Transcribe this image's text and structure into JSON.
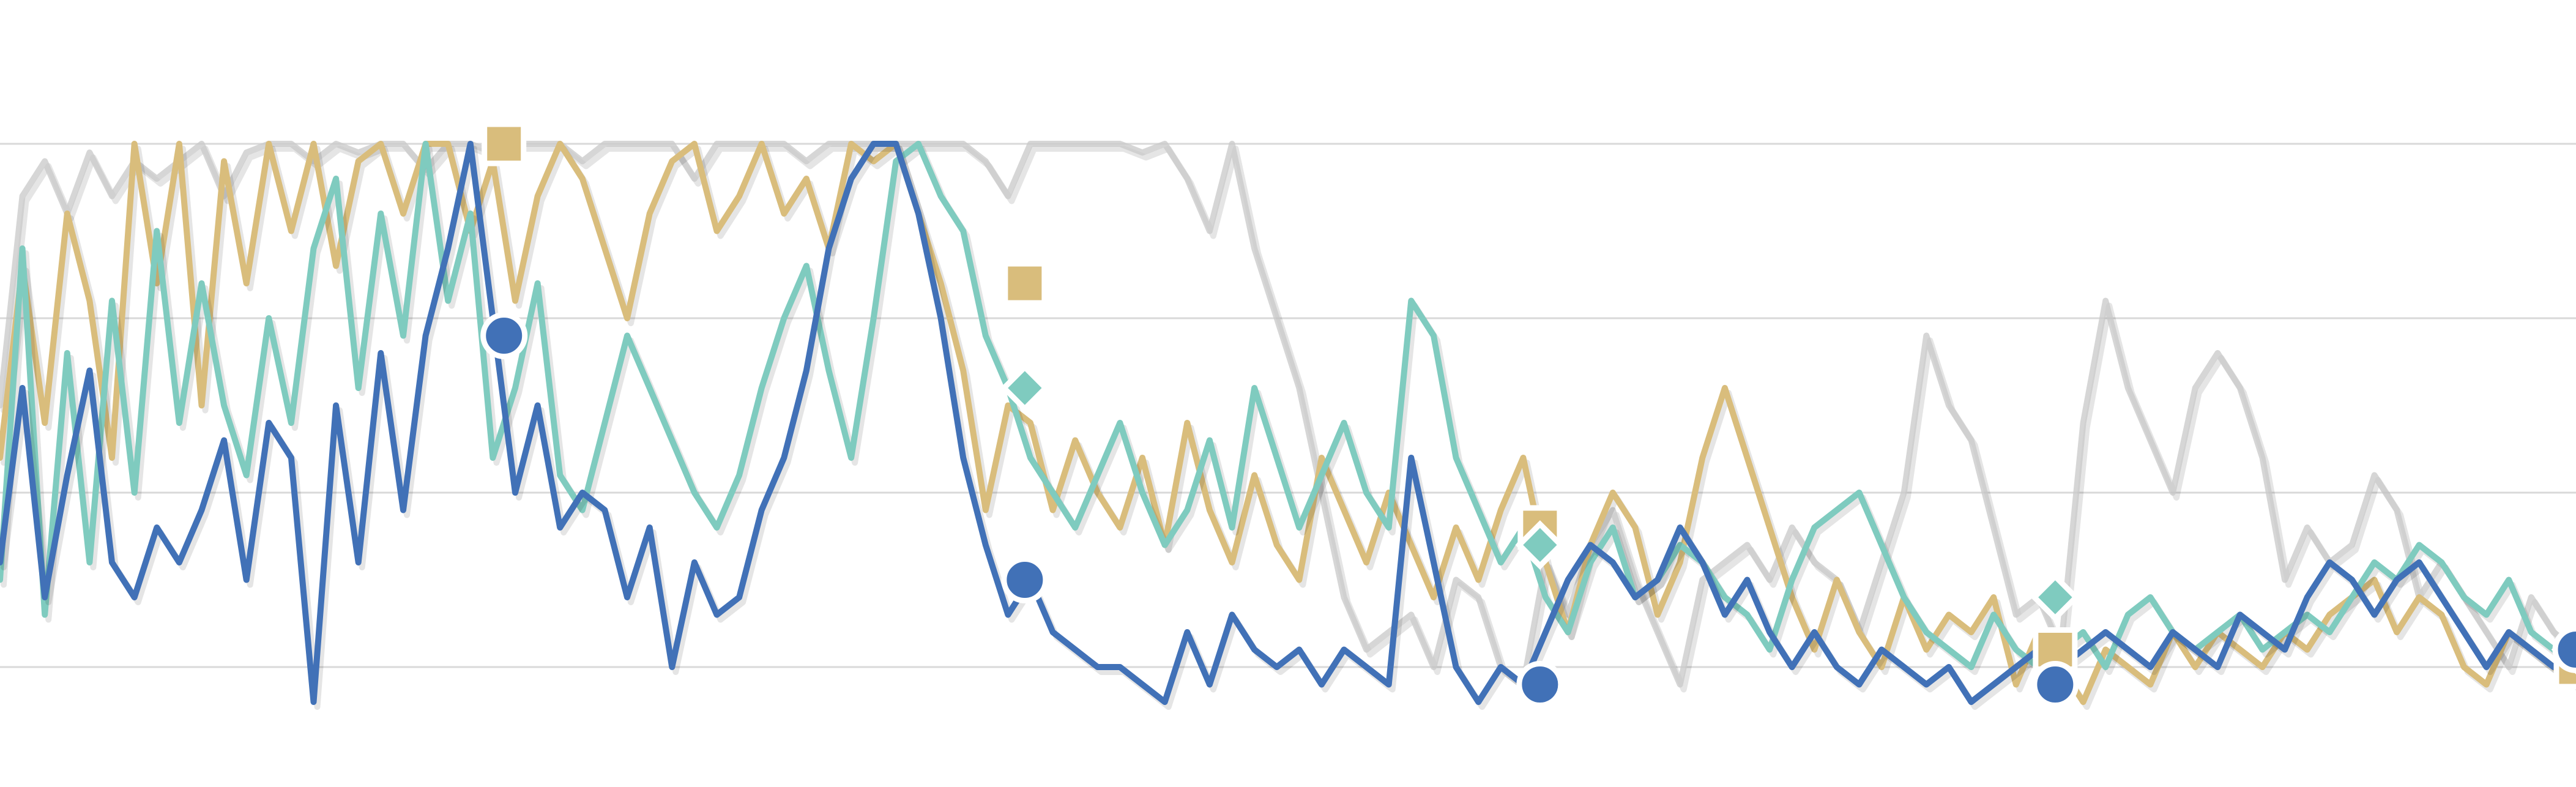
{
  "chart_data": {
    "type": "line",
    "title": "",
    "xlabel": "",
    "ylabel": "",
    "grid": true,
    "legend": "none",
    "ylim": [
      0,
      4
    ],
    "xlim": [
      0,
      460
    ],
    "gridlines": [
      1,
      2,
      3,
      4
    ],
    "series": [
      {
        "color": "#c8c8c8",
        "opacity": 0.75,
        "marker": "none",
        "x": [
          0,
          4,
          8,
          12,
          16,
          20,
          24,
          28,
          32,
          36,
          40,
          44,
          48,
          52,
          56,
          60,
          64,
          68,
          72,
          76,
          80,
          84,
          88,
          92,
          96,
          100,
          104,
          108,
          112,
          116,
          120,
          124,
          128,
          132,
          136,
          140,
          144,
          148,
          152,
          156,
          160,
          164,
          168,
          172,
          176,
          180,
          184,
          188,
          192,
          196,
          200,
          204,
          208,
          212,
          216,
          220,
          224,
          228,
          232,
          236,
          240,
          244,
          248,
          252,
          256,
          260,
          264,
          268,
          272,
          276,
          280,
          284,
          288,
          292,
          296,
          300,
          304,
          308,
          312,
          316,
          320,
          324,
          328,
          332,
          336,
          340,
          344,
          348,
          352,
          356,
          360,
          364,
          368,
          372,
          376,
          380,
          384,
          388,
          392,
          396,
          400,
          404,
          408,
          412,
          416,
          420,
          424,
          428,
          432,
          436,
          440,
          444,
          448,
          452,
          456,
          460
        ],
        "values": [
          2.5,
          3.7,
          3.9,
          3.6,
          3.95,
          3.7,
          3.9,
          3.8,
          3.9,
          4,
          3.7,
          3.95,
          4,
          4,
          3.9,
          4,
          3.95,
          4,
          4,
          3.85,
          4,
          4,
          3.95,
          4,
          4,
          4,
          3.9,
          4,
          4,
          4,
          4,
          3.8,
          4,
          4,
          4,
          4,
          3.9,
          4,
          4,
          4,
          4,
          4,
          4,
          4,
          3.9,
          3.7,
          4,
          4,
          4,
          4,
          4,
          3.95,
          4,
          3.8,
          3.5,
          4,
          3.4,
          3.0,
          2.6,
          2.0,
          1.4,
          1.1,
          1.2,
          1.3,
          1.0,
          1.5,
          1.4,
          1.0,
          0.9,
          1.6,
          1.3,
          1.7,
          1.9,
          1.5,
          1.2,
          0.9,
          1.5,
          1.6,
          1.7,
          1.5,
          1.8,
          1.6,
          1.5,
          1.2,
          1.6,
          2.0,
          2.9,
          2.5,
          2.3,
          1.8,
          1.3,
          1.4,
          1.1,
          2.4,
          3.1,
          2.6,
          2.3,
          2.0,
          2.6,
          2.8,
          2.6,
          2.2,
          1.5,
          1.8,
          1.6,
          1.7,
          2.1,
          1.9,
          1.4,
          1.6,
          1.4,
          1.2,
          1.0,
          1.4,
          1.2,
          1.1
        ]
      },
      {
        "color": "#d9bd7c",
        "opacity": 1,
        "marker": "square",
        "x": [
          0,
          4,
          8,
          12,
          16,
          20,
          24,
          28,
          32,
          36,
          40,
          44,
          48,
          52,
          56,
          60,
          64,
          68,
          72,
          76,
          80,
          84,
          88,
          92,
          96,
          100,
          104,
          108,
          112,
          116,
          120,
          124,
          128,
          132,
          136,
          140,
          144,
          148,
          152,
          156,
          160,
          164,
          168,
          172,
          176,
          180,
          184,
          188,
          192,
          196,
          200,
          204,
          208,
          212,
          216,
          220,
          224,
          228,
          232,
          236,
          240,
          244,
          248,
          252,
          256,
          260,
          264,
          268,
          272,
          276,
          280,
          284,
          288,
          292,
          296,
          300,
          304,
          308,
          312,
          316,
          320,
          324,
          328,
          332,
          336,
          340,
          344,
          348,
          352,
          356,
          360,
          364,
          368,
          372,
          376,
          380,
          384,
          388,
          392,
          396,
          400,
          404,
          408,
          412,
          416,
          420,
          424,
          428,
          432,
          436,
          440,
          444,
          448,
          452,
          456,
          460
        ],
        "values": [
          2.2,
          3.3,
          2.4,
          3.6,
          3.1,
          2.2,
          4.0,
          3.2,
          4.0,
          2.5,
          3.9,
          3.2,
          4.0,
          3.5,
          4.0,
          3.3,
          3.9,
          4.0,
          3.6,
          4.0,
          4.0,
          3.5,
          3.9,
          3.1,
          3.7,
          4.0,
          3.8,
          3.4,
          3.0,
          3.6,
          3.9,
          4.0,
          3.5,
          3.7,
          4.0,
          3.6,
          3.8,
          3.4,
          4.0,
          3.9,
          4.0,
          3.6,
          3.2,
          2.7,
          1.9,
          2.5,
          2.4,
          1.9,
          2.3,
          2.0,
          1.8,
          2.2,
          1.7,
          2.4,
          1.9,
          1.6,
          2.1,
          1.7,
          1.5,
          2.2,
          1.9,
          1.6,
          2.0,
          1.7,
          1.4,
          1.8,
          1.5,
          1.9,
          2.2,
          1.6,
          1.2,
          1.7,
          2.0,
          1.8,
          1.3,
          1.6,
          2.2,
          2.6,
          2.2,
          1.8,
          1.4,
          1.1,
          1.5,
          1.2,
          1.0,
          1.4,
          1.1,
          1.3,
          1.2,
          1.4,
          0.9,
          1.2,
          1.0,
          0.8,
          1.1,
          1.0,
          0.9,
          1.2,
          1.0,
          1.2,
          1.1,
          1.0,
          1.2,
          1.1,
          1.3,
          1.4,
          1.5,
          1.2,
          1.4,
          1.3,
          1.0,
          0.9,
          1.2,
          1.1,
          1.0,
          0.9
        ],
        "marker_x": [
          90,
          183,
          275,
          367,
          460
        ],
        "marker_values": [
          4.0,
          3.2,
          1.8,
          1.1,
          1.0
        ]
      },
      {
        "color": "#7fcbbf",
        "opacity": 1,
        "marker": "diamond",
        "x": [
          0,
          4,
          8,
          12,
          16,
          20,
          24,
          28,
          32,
          36,
          40,
          44,
          48,
          52,
          56,
          60,
          64,
          68,
          72,
          76,
          80,
          84,
          88,
          92,
          96,
          100,
          104,
          108,
          112,
          116,
          120,
          124,
          128,
          132,
          136,
          140,
          144,
          148,
          152,
          156,
          160,
          164,
          168,
          172,
          176,
          180,
          184,
          188,
          192,
          196,
          200,
          204,
          208,
          212,
          216,
          220,
          224,
          228,
          232,
          236,
          240,
          244,
          248,
          252,
          256,
          260,
          264,
          268,
          272,
          276,
          280,
          284,
          288,
          292,
          296,
          300,
          304,
          308,
          312,
          316,
          320,
          324,
          328,
          332,
          336,
          340,
          344,
          348,
          352,
          356,
          360,
          364,
          368,
          372,
          376,
          380,
          384,
          388,
          392,
          396,
          400,
          404,
          408,
          412,
          416,
          420,
          424,
          428,
          432,
          436,
          440,
          444,
          448,
          452,
          456,
          460
        ],
        "values": [
          1.5,
          3.4,
          1.3,
          2.8,
          1.6,
          3.1,
          2.0,
          3.5,
          2.4,
          3.2,
          2.5,
          2.1,
          3.0,
          2.4,
          3.4,
          3.8,
          2.6,
          3.6,
          2.9,
          4.0,
          3.1,
          3.6,
          2.2,
          2.6,
          3.2,
          2.1,
          1.9,
          2.4,
          2.9,
          2.6,
          2.3,
          2.0,
          1.8,
          2.1,
          2.6,
          3.0,
          3.3,
          2.7,
          2.2,
          3.0,
          3.9,
          4.0,
          3.7,
          3.5,
          2.9,
          2.6,
          2.2,
          2.0,
          1.8,
          2.1,
          2.4,
          2.0,
          1.7,
          1.9,
          2.3,
          1.8,
          2.6,
          2.2,
          1.8,
          2.1,
          2.4,
          2.0,
          1.8,
          3.1,
          2.9,
          2.2,
          1.9,
          1.6,
          1.8,
          1.4,
          1.2,
          1.6,
          1.8,
          1.4,
          1.5,
          1.7,
          1.6,
          1.4,
          1.3,
          1.1,
          1.5,
          1.8,
          1.9,
          2.0,
          1.7,
          1.4,
          1.2,
          1.1,
          1.0,
          1.3,
          1.1,
          1.0,
          1.1,
          1.2,
          1.0,
          1.3,
          1.4,
          1.2,
          1.1,
          1.2,
          1.3,
          1.1,
          1.2,
          1.3,
          1.2,
          1.4,
          1.6,
          1.5,
          1.7,
          1.6,
          1.4,
          1.3,
          1.5,
          1.2,
          1.1,
          1.0
        ],
        "marker_x": [
          183,
          275,
          367,
          460
        ],
        "marker_values": [
          2.6,
          1.7,
          1.4,
          1.1
        ]
      },
      {
        "color": "#4171b7",
        "opacity": 1,
        "marker": "circle",
        "x": [
          0,
          4,
          8,
          12,
          16,
          20,
          24,
          28,
          32,
          36,
          40,
          44,
          48,
          52,
          56,
          60,
          64,
          68,
          72,
          76,
          80,
          84,
          88,
          92,
          96,
          100,
          104,
          108,
          112,
          116,
          120,
          124,
          128,
          132,
          136,
          140,
          144,
          148,
          152,
          156,
          160,
          164,
          168,
          172,
          176,
          180,
          184,
          188,
          192,
          196,
          200,
          204,
          208,
          212,
          216,
          220,
          224,
          228,
          232,
          236,
          240,
          244,
          248,
          252,
          256,
          260,
          264,
          268,
          272,
          276,
          280,
          284,
          288,
          292,
          296,
          300,
          304,
          308,
          312,
          316,
          320,
          324,
          328,
          332,
          336,
          340,
          344,
          348,
          352,
          356,
          360,
          364,
          368,
          372,
          376,
          380,
          384,
          388,
          392,
          396,
          400,
          404,
          408,
          412,
          416,
          420,
          424,
          428,
          432,
          436,
          440,
          444,
          448,
          452,
          456,
          460
        ],
        "values": [
          1.6,
          2.6,
          1.4,
          2.1,
          2.7,
          1.6,
          1.4,
          1.8,
          1.6,
          1.9,
          2.3,
          1.5,
          2.4,
          2.2,
          0.8,
          2.5,
          1.6,
          2.8,
          1.9,
          2.9,
          3.4,
          4.0,
          3.0,
          2.0,
          2.5,
          1.8,
          2.0,
          1.9,
          1.4,
          1.8,
          1.0,
          1.6,
          1.3,
          1.4,
          1.9,
          2.2,
          2.7,
          3.4,
          3.8,
          4.0,
          4.0,
          3.6,
          3.0,
          2.2,
          1.7,
          1.3,
          1.5,
          1.2,
          1.1,
          1.0,
          1.0,
          0.9,
          0.8,
          1.2,
          0.9,
          1.3,
          1.1,
          1.0,
          1.1,
          0.9,
          1.1,
          1.0,
          0.9,
          2.2,
          1.6,
          1.0,
          0.8,
          1.0,
          0.9,
          1.2,
          1.5,
          1.7,
          1.6,
          1.4,
          1.5,
          1.8,
          1.6,
          1.3,
          1.5,
          1.2,
          1.0,
          1.2,
          1.0,
          0.9,
          1.1,
          1.0,
          0.9,
          1.0,
          0.8,
          0.9,
          1.0,
          1.1,
          1.0,
          1.1,
          1.2,
          1.1,
          1.0,
          1.2,
          1.1,
          1.0,
          1.3,
          1.2,
          1.1,
          1.4,
          1.6,
          1.5,
          1.3,
          1.5,
          1.6,
          1.4,
          1.2,
          1.0,
          1.2,
          1.1,
          1.0,
          1.1
        ],
        "marker_x": [
          90,
          183,
          275,
          367,
          460
        ],
        "marker_values": [
          2.9,
          1.5,
          0.9,
          0.9,
          1.1
        ]
      }
    ]
  }
}
